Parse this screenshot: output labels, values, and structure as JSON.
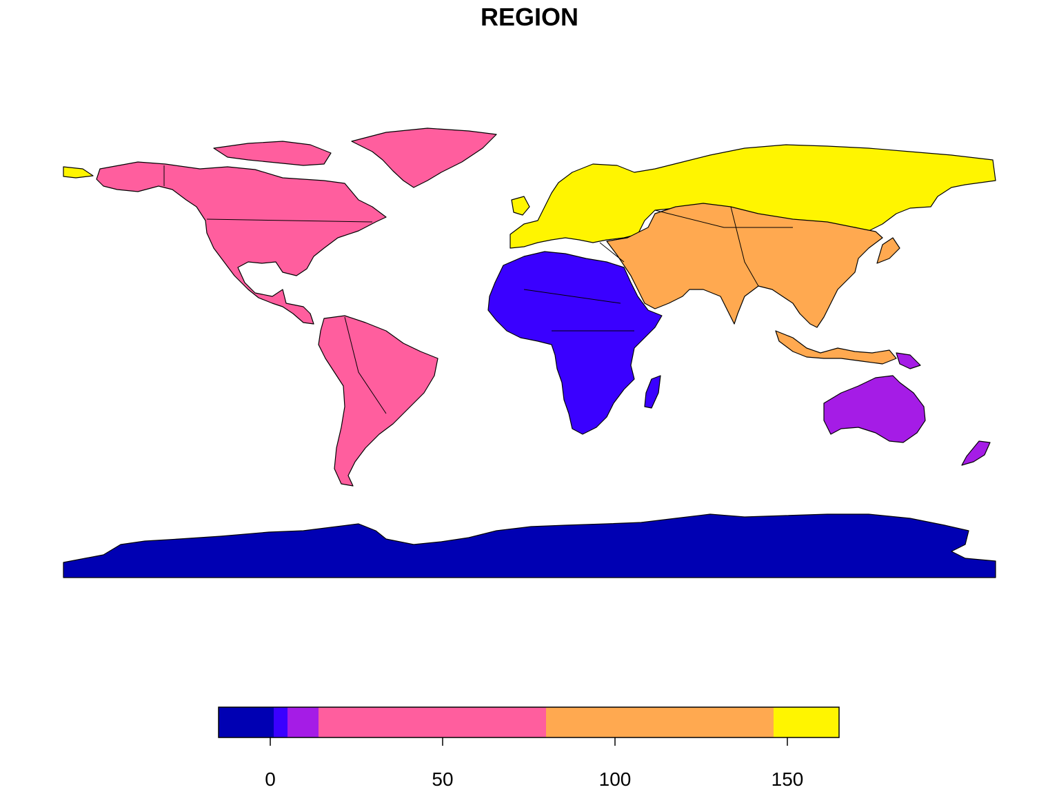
{
  "title": "REGION",
  "legend": {
    "ticks": [
      "0",
      "50",
      "100",
      "150"
    ],
    "bins": [
      {
        "from": -15,
        "to": 1,
        "color": "#0000B3"
      },
      {
        "from": 1,
        "to": 5,
        "color": "#3A00FF"
      },
      {
        "from": 5,
        "to": 14,
        "color": "#A51CE6"
      },
      {
        "from": 14,
        "to": 80,
        "color": "#FF5E9E"
      },
      {
        "from": 80,
        "to": 146,
        "color": "#FFA950"
      },
      {
        "from": 146,
        "to": 165,
        "color": "#FFF500"
      }
    ],
    "range": [
      -15,
      165
    ]
  },
  "regions": [
    {
      "name": "Antarctica",
      "color": "#0000B3"
    },
    {
      "name": "Africa",
      "color": "#3A00FF"
    },
    {
      "name": "Oceania",
      "color": "#A51CE6"
    },
    {
      "name": "Americas",
      "color": "#FF5E9E"
    },
    {
      "name": "Asia",
      "color": "#FFA950"
    },
    {
      "name": "Europe",
      "color": "#FFF500"
    }
  ]
}
